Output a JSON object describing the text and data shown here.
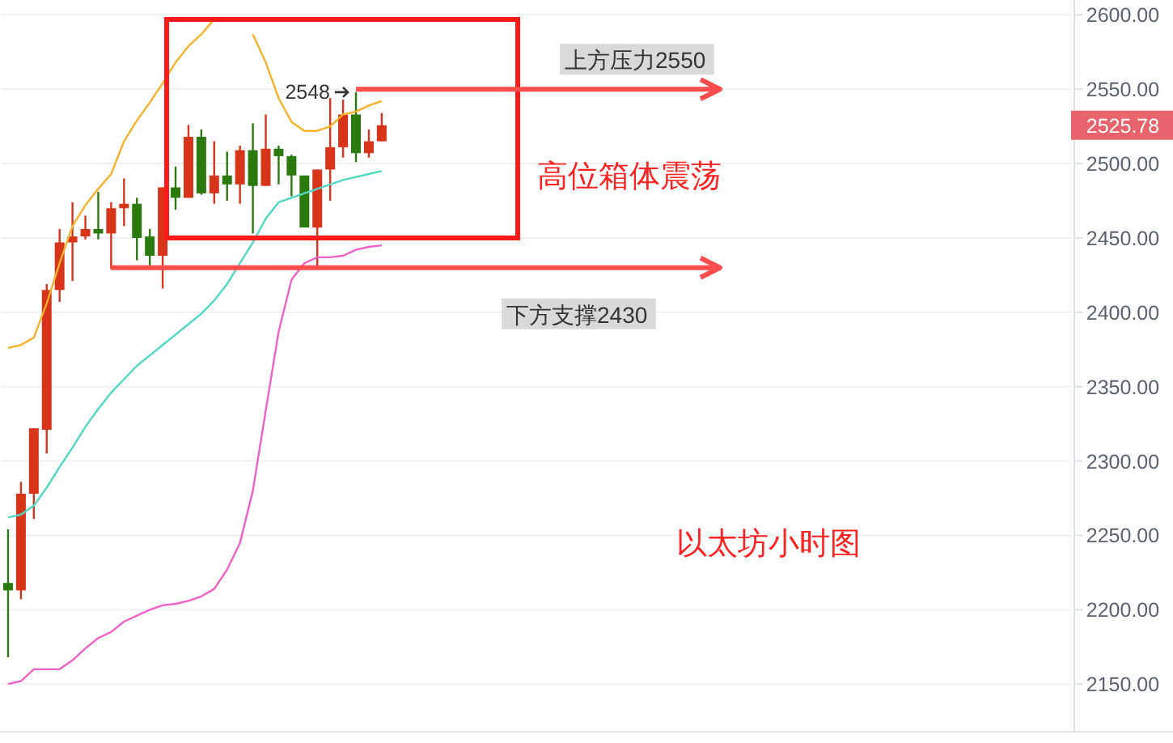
{
  "chart_data": {
    "type": "candlestick",
    "categories": [
      null,
      null,
      null,
      null,
      null,
      null,
      null,
      null,
      null,
      null,
      null,
      null,
      null,
      null,
      null,
      null,
      null,
      null,
      null,
      null,
      null,
      null,
      null,
      null,
      null,
      null,
      null,
      null,
      null,
      null,
      null,
      null,
      null,
      null,
      null,
      null,
      null,
      null,
      null,
      null,
      null,
      null,
      null,
      null,
      null,
      null,
      null,
      null,
      null,
      null,
      null,
      null,
      null,
      null,
      null,
      null,
      null,
      null,
      null,
      null,
      null,
      null,
      null,
      null,
      null,
      null,
      null,
      null,
      null,
      null,
      null,
      null,
      null,
      null,
      null,
      null,
      null,
      null,
      null,
      null,
      null,
      null,
      null
    ],
    "ohlc": [
      [
        2218,
        2254,
        2168,
        2213
      ],
      [
        2213,
        2286,
        2207,
        2278
      ],
      [
        2278,
        2322,
        2261,
        2322
      ],
      [
        2321,
        2419,
        2305,
        2415
      ],
      [
        2415,
        2456,
        2407,
        2447
      ],
      [
        2447,
        2474,
        2421,
        2451
      ],
      [
        2451,
        2465,
        2449,
        2456
      ],
      [
        2456,
        2481,
        2449,
        2453
      ],
      [
        2453,
        2474,
        2429,
        2470
      ],
      [
        2470,
        2490,
        2458,
        2473
      ],
      [
        2473,
        2477,
        2435,
        2450
      ],
      [
        2451,
        2456,
        2430,
        2438
      ],
      [
        2438,
        2484,
        2416,
        2484
      ],
      [
        2484,
        2498,
        2469,
        2477
      ],
      [
        2477,
        2526,
        2477,
        2518
      ],
      [
        2518,
        2523,
        2479,
        2480
      ],
      [
        2480,
        2515,
        2473,
        2492
      ],
      [
        2492,
        2508,
        2475,
        2486
      ],
      [
        2486,
        2512,
        2473,
        2509
      ],
      [
        2509,
        2527,
        2453,
        2485
      ],
      [
        2485,
        2533,
        2485,
        2510
      ],
      [
        2510,
        2512,
        2486,
        2505
      ],
      [
        2505,
        2506,
        2478,
        2492
      ],
      [
        2492,
        2492,
        2457,
        2457
      ],
      [
        2457,
        2496,
        2431,
        2496
      ],
      [
        2496,
        2544,
        2475,
        2511
      ],
      [
        2511,
        2543,
        2504,
        2533
      ],
      [
        2533,
        2548,
        2501,
        2507
      ],
      [
        2507,
        2523,
        2504,
        2515
      ],
      [
        2515,
        2534,
        2515,
        2525.78
      ],
      null,
      null,
      null,
      null,
      null,
      null,
      null,
      null,
      null,
      null,
      null,
      null,
      null,
      null,
      null,
      null,
      null,
      null,
      null,
      null,
      null,
      null,
      null,
      null,
      null,
      null,
      null,
      null,
      null,
      null,
      null,
      null,
      null,
      null,
      null,
      null,
      null,
      null,
      null,
      null,
      null,
      null,
      null,
      null,
      null,
      null,
      null,
      null,
      null,
      null,
      null,
      null,
      null
    ],
    "colors": [
      "#2a7a0e",
      "#d7341a",
      "#d7341a",
      "#d7341a",
      "#d7341a",
      "#d7341a",
      "#d7341a",
      "#2a7a0e",
      "#d7341a",
      "#d7341a",
      "#2a7a0e",
      "#2a7a0e",
      "#d7341a",
      "#2a7a0e",
      "#d7341a",
      "#2a7a0e",
      "#d7341a",
      "#2a7a0e",
      "#d7341a",
      "#2a7a0e",
      "#d7341a",
      "#2a7a0e",
      "#2a7a0e",
      "#2a7a0e",
      "#d7341a",
      "#d7341a",
      "#d7341a",
      "#2a7a0e",
      "#d7341a",
      "#d7341a",
      null,
      null,
      null,
      null,
      null,
      null,
      null,
      null,
      null,
      null,
      null,
      null,
      null,
      null,
      null,
      null,
      null,
      null,
      null,
      null,
      null,
      null,
      null,
      null,
      null,
      null,
      null,
      null,
      null,
      null,
      null,
      null,
      null,
      null,
      null,
      null,
      null,
      null,
      null,
      null,
      null,
      null,
      null,
      null,
      null,
      null,
      null,
      null,
      null,
      null,
      null,
      null,
      null
    ],
    "series": [
      {
        "type": "line",
        "color": "#f7b22a",
        "values": [
          2376,
          2378,
          2383,
          2406,
          2433,
          2458,
          2472,
          2483,
          2493,
          2515,
          2529,
          2541,
          2554,
          2568,
          2579,
          2587,
          2597,
          null,
          null,
          2587,
          2568,
          2544,
          2528,
          2522,
          2522,
          2525,
          2533,
          2535,
          2539,
          2542,
          null,
          null,
          null,
          null,
          null,
          null,
          null,
          null,
          null,
          null,
          null,
          null,
          null,
          null,
          null,
          null,
          null,
          null,
          null,
          null,
          null,
          null,
          null,
          null,
          null,
          null,
          null,
          null,
          null,
          null,
          null,
          null,
          null,
          null,
          null,
          null,
          null,
          null,
          null,
          null,
          null,
          null,
          null,
          null,
          null,
          null,
          null,
          null,
          null,
          null,
          null,
          null,
          null
        ]
      },
      {
        "type": "line",
        "color": "#4fd8c4",
        "values": [
          2262,
          2264,
          2270,
          2282,
          2296,
          2309,
          2323,
          2335,
          2346,
          2355,
          2364,
          2371,
          2378,
          2385,
          2392,
          2399,
          2408,
          2419,
          2433,
          2447,
          2463,
          2474,
          2477,
          2480,
          2483,
          2486,
          2489,
          2491,
          2493,
          2495,
          null,
          null,
          null,
          null,
          null,
          null,
          null,
          null,
          null,
          null,
          null,
          null,
          null,
          null,
          null,
          null,
          null,
          null,
          null,
          null,
          null,
          null,
          null,
          null,
          null,
          null,
          null,
          null,
          null,
          null,
          null,
          null,
          null,
          null,
          null,
          null,
          null,
          null,
          null,
          null,
          null,
          null,
          null,
          null,
          null,
          null,
          null,
          null,
          null,
          null,
          null,
          null,
          null
        ]
      },
      {
        "type": "line",
        "color": "#f060c8",
        "values": [
          2150,
          2152,
          2160,
          2160,
          2160,
          2166,
          2174,
          2181,
          2185,
          2192,
          2196,
          2200,
          2203,
          2204,
          2206,
          2209,
          2214,
          2227,
          2245,
          2280,
          2334,
          2387,
          2422,
          2433,
          2437,
          2437,
          2438,
          2442,
          2444,
          2445,
          null,
          null,
          null,
          null,
          null,
          null,
          null,
          null,
          null,
          null,
          null,
          null,
          null,
          null,
          null,
          null,
          null,
          null,
          null,
          null,
          null,
          null,
          null,
          null,
          null,
          null,
          null,
          null,
          null,
          null,
          null,
          null,
          null,
          null,
          null,
          null,
          null,
          null,
          null,
          null,
          null,
          null,
          null,
          null,
          null,
          null,
          null,
          null,
          null,
          null,
          null,
          null,
          null
        ]
      }
    ],
    "ylim": [
      2118,
      2610
    ],
    "yticks": [
      {
        "value": 2150,
        "label": "2150.00"
      },
      {
        "value": 2200,
        "label": "2200.00"
      },
      {
        "value": 2250,
        "label": "2250.00"
      },
      {
        "value": 2300,
        "label": "2300.00"
      },
      {
        "value": 2350,
        "label": "2350.00"
      },
      {
        "value": 2400,
        "label": "2400.00"
      },
      {
        "value": 2450,
        "label": "2450.00"
      },
      {
        "value": 2500,
        "label": "2500.00"
      },
      {
        "value": 2550,
        "label": "2550.00"
      },
      {
        "value": 2600,
        "label": "2600.00"
      }
    ],
    "tick_labels": "y",
    "grid": "y",
    "ref_lines": [
      {
        "axis": "y",
        "value": 2550,
        "label": "上方压力2550",
        "color": "#ff4d4d"
      },
      {
        "axis": "y",
        "value": 2430,
        "label": "下方支撑2430",
        "color": "#ff4d4d"
      }
    ],
    "annotations": [
      "2548",
      "2525.78",
      "高位箱体震荡",
      "以太坊小时图"
    ]
  }
}
